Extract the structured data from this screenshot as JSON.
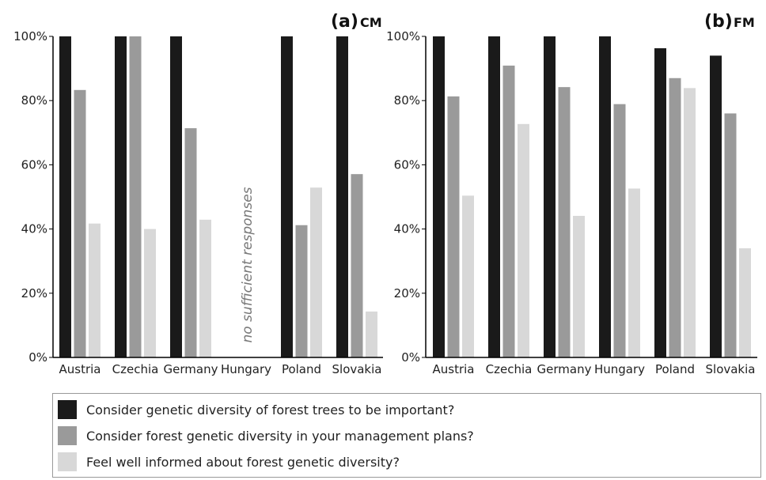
{
  "colors": {
    "series": [
      "#1a1a1a",
      "#9a9a9a",
      "#d8d8d8"
    ],
    "axis": "#000000"
  },
  "chart_data": [
    {
      "type": "bar",
      "panel": "(a)",
      "panel_name": "CM",
      "categories": [
        "Austria",
        "Czechia",
        "Germany",
        "Hungary",
        "Poland",
        "Slovakia"
      ],
      "ylim": [
        0,
        100
      ],
      "yticks": [
        "0%",
        "20%",
        "40%",
        "60%",
        "80%",
        "100%"
      ],
      "grid": false,
      "annotation": "no sufficient responses",
      "series": [
        {
          "name": "Consider genetic diversity of forest trees to be important?",
          "values": [
            100,
            100,
            100,
            null,
            100,
            100
          ]
        },
        {
          "name": "Consider forest genetic diversity in your management plans?",
          "values": [
            83.3,
            100,
            71.4,
            null,
            41.2,
            57.1
          ]
        },
        {
          "name": "Feel well informed about forest genetic diversity?",
          "values": [
            41.7,
            40,
            42.9,
            null,
            52.9,
            14.3
          ]
        }
      ]
    },
    {
      "type": "bar",
      "panel": "(b)",
      "panel_name": "FM",
      "categories": [
        "Austria",
        "Czechia",
        "Germany",
        "Hungary",
        "Poland",
        "Slovakia"
      ],
      "ylim": [
        0,
        100
      ],
      "yticks": [
        "0%",
        "20%",
        "40%",
        "60%",
        "80%",
        "100%"
      ],
      "grid": false,
      "series": [
        {
          "name": "Consider genetic diversity of forest trees to be important?",
          "values": [
            100,
            100,
            100,
            100,
            96.3,
            94
          ]
        },
        {
          "name": "Consider forest genetic diversity in your management plans?",
          "values": [
            81.3,
            90.9,
            84.2,
            78.9,
            87,
            76
          ]
        },
        {
          "name": "Feel well informed about forest genetic diversity?",
          "values": [
            50.4,
            72.7,
            44.1,
            52.6,
            83.9,
            34
          ]
        }
      ]
    }
  ],
  "legend": {
    "items": [
      "Consider genetic diversity of forest trees to be important?",
      "Consider forest genetic diversity in your management plans?",
      "Feel well informed about forest genetic diversity?"
    ]
  }
}
